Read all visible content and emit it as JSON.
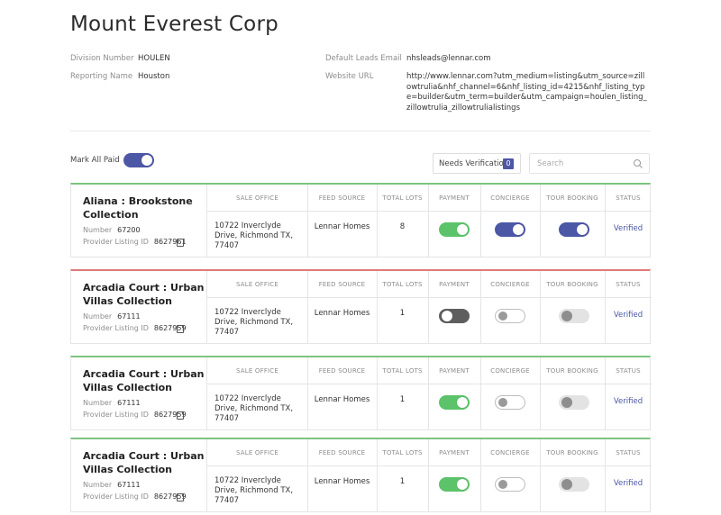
{
  "header": {
    "title": "Mount Everest Corp",
    "division_label": "Division Number",
    "division_value": "HOULEN",
    "reporting_label": "Reporting Name",
    "reporting_value": "Houston",
    "email_label": "Default Leads Email",
    "email_value": "nhsleads@lennar.com",
    "website_label": "Website URL",
    "website_value": "http://www.lennar.com?utm_medium=listing&utm_source=zillowtrulia&nhf_channel=6&nhf_listing_id=4215&nhf_listing_type=builder&utm_term=builder&utm_campaign=houlen_listing_zillowtrulia_zillowtrulialistings"
  },
  "toolbar": {
    "mark_all_paid_label": "Mark All Paid",
    "needs_verification_label": "Needs Verification",
    "needs_verification_count": "0",
    "search_placeholder": "Search"
  },
  "columns": {
    "sale_office": "SALE OFFICE",
    "feed_source": "FEED SOURCE",
    "total_lots": "TOTAL LOTS",
    "payment": "PAYMENT",
    "concierge": "CONCIERGE",
    "tour_booking": "TOUR BOOKING",
    "status": "STATUS"
  },
  "labels": {
    "number": "Number",
    "provider_listing_id": "Provider Listing ID"
  },
  "listings": [
    {
      "name": "Aliana : Brookstone Collection",
      "number": "67200",
      "provider_listing_id": "8627961",
      "sale_office": "10722 Inverclyde Drive, Richmond TX, 77407",
      "feed_source": "Lennar Homes",
      "total_lots": "8",
      "status": "Verified",
      "border_color": "#7cc47f",
      "payment": true,
      "concierge": true,
      "tour_booking": true
    },
    {
      "name": "Arcadia Court : Urban Villas Collection",
      "number": "67111",
      "provider_listing_id": "8627959",
      "sale_office": "10722 Inverclyde Drive, Richmond TX, 77407",
      "feed_source": "Lennar Homes",
      "total_lots": "1",
      "status": "Verified",
      "border_color": "#e07a7a",
      "payment": false,
      "concierge": false,
      "tour_booking": false
    },
    {
      "name": "Arcadia Court : Urban Villas Collection",
      "number": "67111",
      "provider_listing_id": "8627959",
      "sale_office": "10722 Inverclyde Drive, Richmond TX, 77407",
      "feed_source": "Lennar Homes",
      "total_lots": "1",
      "status": "Verified",
      "border_color": "#7cc47f",
      "payment": true,
      "concierge": false,
      "tour_booking": false
    },
    {
      "name": "Arcadia Court : Urban Villas Collection",
      "number": "67111",
      "provider_listing_id": "8627959",
      "sale_office": "10722 Inverclyde Drive, Richmond TX, 77407",
      "feed_source": "Lennar Homes",
      "total_lots": "1",
      "status": "Verified",
      "border_color": "#7cc47f",
      "payment": true,
      "concierge": false,
      "tour_booking": false
    }
  ],
  "colors": {
    "accent": "#4c57a6",
    "paid_green": "#5cc36a"
  }
}
